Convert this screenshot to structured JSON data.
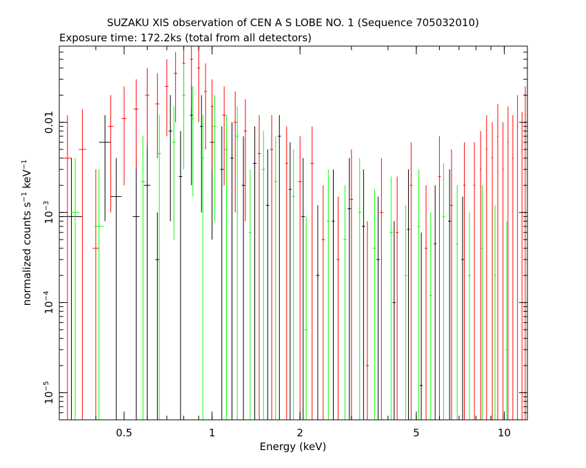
{
  "chart_data": {
    "type": "scatter",
    "title": "SUZAKU XIS observation of CEN A S LOBE NO. 1 (Sequence 705032010)",
    "subtitle": "Exposure time: 172.2ks (total from all detectors)",
    "xlabel": "Energy (keV)",
    "ylabel_main": "normalized counts s",
    "ylabel_sup1": "−1",
    "ylabel_mid": " keV",
    "ylabel_sup2": "−1",
    "x_scale": "log",
    "y_scale": "log",
    "xlim": [
      0.3,
      12.0
    ],
    "ylim": [
      5e-06,
      0.07
    ],
    "grid": false,
    "x_ticks": [
      {
        "value": 0.5,
        "label": "0.5"
      },
      {
        "value": 1,
        "label": "1"
      },
      {
        "value": 2,
        "label": "2"
      },
      {
        "value": 5,
        "label": "5"
      },
      {
        "value": 10,
        "label": "10"
      }
    ],
    "y_ticks": [
      {
        "value": 1e-05,
        "base": "10",
        "exp": "−5"
      },
      {
        "value": 0.0001,
        "base": "10",
        "exp": "−4"
      },
      {
        "value": 0.001,
        "base": "10",
        "exp": "−3"
      },
      {
        "value": 0.01,
        "base": "0.01",
        "exp": ""
      }
    ],
    "series": [
      {
        "color": "#000000",
        "points": [
          {
            "x": 0.33,
            "y": 0.0009,
            "xerr": 0.03,
            "ylo": 5e-06,
            "yhi": 0.004
          },
          {
            "x": 0.43,
            "y": 0.006,
            "xerr": 0.02,
            "ylo": 0.0008,
            "yhi": 0.012
          },
          {
            "x": 0.47,
            "y": 0.0015,
            "xerr": 0.02,
            "ylo": 5e-06,
            "yhi": 0.004
          },
          {
            "x": 0.55,
            "y": 0.0009,
            "xerr": 0.015,
            "ylo": 5e-06,
            "yhi": 0.004
          },
          {
            "x": 0.6,
            "y": 0.002,
            "xerr": 0.015,
            "ylo": 5e-06,
            "yhi": 0.006
          },
          {
            "x": 0.65,
            "y": 0.0003,
            "xerr": 0.01,
            "ylo": 5e-06,
            "yhi": 0.001
          },
          {
            "x": 0.72,
            "y": 0.008,
            "xerr": 0.01,
            "ylo": 0.0008,
            "yhi": 0.02
          },
          {
            "x": 0.78,
            "y": 0.0025,
            "xerr": 0.01,
            "ylo": 5e-06,
            "yhi": 0.008
          },
          {
            "x": 0.85,
            "y": 0.012,
            "xerr": 0.01,
            "ylo": 0.002,
            "yhi": 0.025
          },
          {
            "x": 0.92,
            "y": 0.009,
            "xerr": 0.01,
            "ylo": 0.001,
            "yhi": 0.02
          },
          {
            "x": 1.0,
            "y": 0.006,
            "xerr": 0.015,
            "ylo": 0.0005,
            "yhi": 0.015
          },
          {
            "x": 1.08,
            "y": 0.003,
            "xerr": 0.015,
            "ylo": 5e-06,
            "yhi": 0.009
          },
          {
            "x": 1.17,
            "y": 0.004,
            "xerr": 0.015,
            "ylo": 5e-06,
            "yhi": 0.01
          },
          {
            "x": 1.28,
            "y": 0.002,
            "xerr": 0.015,
            "ylo": 5e-06,
            "yhi": 0.007
          },
          {
            "x": 1.4,
            "y": 0.0035,
            "xerr": 0.02,
            "ylo": 5e-06,
            "yhi": 0.009
          },
          {
            "x": 1.55,
            "y": 0.0012,
            "xerr": 0.02,
            "ylo": 5e-06,
            "yhi": 0.005
          },
          {
            "x": 1.7,
            "y": 0.007,
            "xerr": 0.02,
            "ylo": 5e-06,
            "yhi": 0.012
          },
          {
            "x": 1.85,
            "y": 0.0018,
            "xerr": 0.02,
            "ylo": 5e-06,
            "yhi": 0.006
          },
          {
            "x": 2.05,
            "y": 0.0009,
            "xerr": 0.03,
            "ylo": 5e-06,
            "yhi": 0.004
          },
          {
            "x": 2.3,
            "y": 0.0002,
            "xerr": 0.03,
            "ylo": 5e-06,
            "yhi": 0.0012
          },
          {
            "x": 2.6,
            "y": 0.0008,
            "xerr": 0.03,
            "ylo": 5e-06,
            "yhi": 0.003
          },
          {
            "x": 2.95,
            "y": 0.0011,
            "xerr": 0.04,
            "ylo": 5e-06,
            "yhi": 0.004
          },
          {
            "x": 3.3,
            "y": 0.0007,
            "xerr": 0.04,
            "ylo": 5e-06,
            "yhi": 0.003
          },
          {
            "x": 3.7,
            "y": 0.0003,
            "xerr": 0.05,
            "ylo": 5e-06,
            "yhi": 0.0015
          },
          {
            "x": 4.2,
            "y": 0.0001,
            "xerr": 0.05,
            "ylo": 5e-06,
            "yhi": 0.0008
          },
          {
            "x": 4.7,
            "y": 0.00065,
            "xerr": 0.05,
            "ylo": 5e-06,
            "yhi": 0.003
          },
          {
            "x": 5.2,
            "y": 1.2e-05,
            "xerr": 0.06,
            "ylo": 5e-06,
            "yhi": 0.0006
          },
          {
            "x": 5.8,
            "y": 0.00045,
            "xerr": 0.06,
            "ylo": 5e-06,
            "yhi": 0.002
          },
          {
            "x": 6.5,
            "y": 0.0008,
            "xerr": 0.07,
            "ylo": 5e-06,
            "yhi": 0.003
          },
          {
            "x": 7.2,
            "y": 0.0003,
            "xerr": 0.07,
            "ylo": 5e-06,
            "yhi": 0.0015
          }
        ]
      },
      {
        "color": "#ff0000",
        "points": [
          {
            "x": 0.32,
            "y": 0.004,
            "xerr": 0.01,
            "ylo": 5e-06,
            "yhi": 0.012
          },
          {
            "x": 0.36,
            "y": 0.005,
            "xerr": 0.01,
            "ylo": 5e-06,
            "yhi": 0.014
          },
          {
            "x": 0.4,
            "y": 0.0004,
            "xerr": 0.01,
            "ylo": 5e-06,
            "yhi": 0.003
          },
          {
            "x": 0.45,
            "y": 0.009,
            "xerr": 0.01,
            "ylo": 0.001,
            "yhi": 0.02
          },
          {
            "x": 0.5,
            "y": 0.011,
            "xerr": 0.01,
            "ylo": 0.002,
            "yhi": 0.025
          },
          {
            "x": 0.55,
            "y": 0.014,
            "xerr": 0.01,
            "ylo": 0.003,
            "yhi": 0.03
          },
          {
            "x": 0.6,
            "y": 0.02,
            "xerr": 0.01,
            "ylo": 0.005,
            "yhi": 0.04
          },
          {
            "x": 0.65,
            "y": 0.016,
            "xerr": 0.01,
            "ylo": 0.004,
            "yhi": 0.035
          },
          {
            "x": 0.7,
            "y": 0.025,
            "xerr": 0.01,
            "ylo": 0.007,
            "yhi": 0.05
          },
          {
            "x": 0.75,
            "y": 0.035,
            "xerr": 0.01,
            "ylo": 0.01,
            "yhi": 0.06
          },
          {
            "x": 0.8,
            "y": 0.045,
            "xerr": 0.01,
            "ylo": 0.012,
            "yhi": 0.07
          },
          {
            "x": 0.85,
            "y": 0.05,
            "xerr": 0.01,
            "ylo": 0.015,
            "yhi": 0.07
          },
          {
            "x": 0.9,
            "y": 0.04,
            "xerr": 0.01,
            "ylo": 0.01,
            "yhi": 0.07
          },
          {
            "x": 0.95,
            "y": 0.022,
            "xerr": 0.01,
            "ylo": 0.005,
            "yhi": 0.045
          },
          {
            "x": 1.0,
            "y": 0.015,
            "xerr": 0.01,
            "ylo": 0.003,
            "yhi": 0.03
          },
          {
            "x": 1.1,
            "y": 0.012,
            "xerr": 0.015,
            "ylo": 0.002,
            "yhi": 0.025
          },
          {
            "x": 1.2,
            "y": 0.01,
            "xerr": 0.015,
            "ylo": 0.001,
            "yhi": 0.022
          },
          {
            "x": 1.3,
            "y": 0.008,
            "xerr": 0.015,
            "ylo": 0.0008,
            "yhi": 0.018
          },
          {
            "x": 1.45,
            "y": 0.0045,
            "xerr": 0.02,
            "ylo": 5e-06,
            "yhi": 0.012
          },
          {
            "x": 1.6,
            "y": 0.005,
            "xerr": 0.02,
            "ylo": 5e-06,
            "yhi": 0.012
          },
          {
            "x": 1.8,
            "y": 0.0035,
            "xerr": 0.02,
            "ylo": 5e-06,
            "yhi": 0.009
          },
          {
            "x": 2.0,
            "y": 0.0022,
            "xerr": 0.03,
            "ylo": 5e-06,
            "yhi": 0.007
          },
          {
            "x": 2.2,
            "y": 0.0035,
            "xerr": 0.03,
            "ylo": 5e-06,
            "yhi": 0.009
          },
          {
            "x": 2.4,
            "y": 0.0005,
            "xerr": 0.03,
            "ylo": 5e-06,
            "yhi": 0.002
          },
          {
            "x": 2.7,
            "y": 0.0003,
            "xerr": 0.03,
            "ylo": 5e-06,
            "yhi": 0.0015
          },
          {
            "x": 3.0,
            "y": 0.0014,
            "xerr": 0.04,
            "ylo": 5e-06,
            "yhi": 0.005
          },
          {
            "x": 3.4,
            "y": 2e-05,
            "xerr": 0.04,
            "ylo": 5e-06,
            "yhi": 0.0008
          },
          {
            "x": 3.8,
            "y": 0.001,
            "xerr": 0.05,
            "ylo": 5e-06,
            "yhi": 0.004
          },
          {
            "x": 4.3,
            "y": 0.0006,
            "xerr": 0.05,
            "ylo": 5e-06,
            "yhi": 0.0025
          },
          {
            "x": 4.8,
            "y": 0.002,
            "xerr": 0.05,
            "ylo": 5e-06,
            "yhi": 0.006
          },
          {
            "x": 5.4,
            "y": 0.0004,
            "xerr": 0.06,
            "ylo": 5e-06,
            "yhi": 0.002
          },
          {
            "x": 6.0,
            "y": 0.0025,
            "xerr": 0.06,
            "ylo": 5e-06,
            "yhi": 0.007
          },
          {
            "x": 6.6,
            "y": 0.0012,
            "xerr": 0.07,
            "ylo": 5e-06,
            "yhi": 0.005
          },
          {
            "x": 7.3,
            "y": 0.002,
            "xerr": 0.07,
            "ylo": 5e-06,
            "yhi": 0.006
          },
          {
            "x": 7.9,
            "y": 0.002,
            "xerr": 0.05,
            "ylo": 5e-06,
            "yhi": 0.006
          },
          {
            "x": 8.3,
            "y": 0.003,
            "xerr": 0.05,
            "ylo": 5e-06,
            "yhi": 0.008
          },
          {
            "x": 8.7,
            "y": 0.005,
            "xerr": 0.05,
            "ylo": 5e-06,
            "yhi": 0.012
          },
          {
            "x": 9.1,
            "y": 0.004,
            "xerr": 0.05,
            "ylo": 5e-06,
            "yhi": 0.01
          },
          {
            "x": 9.5,
            "y": 0.007,
            "xerr": 0.05,
            "ylo": 5e-06,
            "yhi": 0.016
          },
          {
            "x": 9.9,
            "y": 0.003,
            "xerr": 0.05,
            "ylo": 5e-06,
            "yhi": 0.01
          },
          {
            "x": 10.3,
            "y": 0.006,
            "xerr": 0.05,
            "ylo": 5e-06,
            "yhi": 0.015
          },
          {
            "x": 10.7,
            "y": 0.004,
            "xerr": 0.05,
            "ylo": 5e-06,
            "yhi": 0.012
          },
          {
            "x": 11.1,
            "y": 0.009,
            "xerr": 0.05,
            "ylo": 5e-06,
            "yhi": 0.02
          },
          {
            "x": 11.5,
            "y": 0.005,
            "xerr": 0.05,
            "ylo": 5e-06,
            "yhi": 0.013
          },
          {
            "x": 11.8,
            "y": 0.012,
            "xerr": 0.05,
            "ylo": 5e-06,
            "yhi": 0.025
          }
        ]
      },
      {
        "color": "#00ff00",
        "points": [
          {
            "x": 0.34,
            "y": 0.001,
            "xerr": 0.01,
            "ylo": 5e-06,
            "yhi": 0.004
          },
          {
            "x": 0.41,
            "y": 0.0007,
            "xerr": 0.015,
            "ylo": 5e-06,
            "yhi": 0.003
          },
          {
            "x": 0.58,
            "y": 0.0022,
            "xerr": 0.01,
            "ylo": 5e-06,
            "yhi": 0.007
          },
          {
            "x": 0.66,
            "y": 0.0045,
            "xerr": 0.01,
            "ylo": 5e-06,
            "yhi": 0.012
          },
          {
            "x": 0.74,
            "y": 0.006,
            "xerr": 0.01,
            "ylo": 0.0005,
            "yhi": 0.015
          },
          {
            "x": 0.8,
            "y": 0.02,
            "xerr": 0.01,
            "ylo": 0.003,
            "yhi": 0.045
          },
          {
            "x": 0.86,
            "y": 0.011,
            "xerr": 0.01,
            "ylo": 0.0015,
            "yhi": 0.025
          },
          {
            "x": 0.93,
            "y": 0.004,
            "xerr": 0.01,
            "ylo": 5e-06,
            "yhi": 0.012
          },
          {
            "x": 1.02,
            "y": 0.009,
            "xerr": 0.015,
            "ylo": 0.0008,
            "yhi": 0.02
          },
          {
            "x": 1.12,
            "y": 0.005,
            "xerr": 0.015,
            "ylo": 5e-06,
            "yhi": 0.012
          },
          {
            "x": 1.22,
            "y": 0.007,
            "xerr": 0.015,
            "ylo": 5e-06,
            "yhi": 0.015
          },
          {
            "x": 1.35,
            "y": 0.0006,
            "xerr": 0.015,
            "ylo": 5e-06,
            "yhi": 0.003
          },
          {
            "x": 1.5,
            "y": 0.003,
            "xerr": 0.02,
            "ylo": 5e-06,
            "yhi": 0.008
          },
          {
            "x": 1.65,
            "y": 0.0022,
            "xerr": 0.02,
            "ylo": 5e-06,
            "yhi": 0.007
          },
          {
            "x": 1.9,
            "y": 0.0015,
            "xerr": 0.02,
            "ylo": 5e-06,
            "yhi": 0.005
          },
          {
            "x": 2.1,
            "y": 5e-05,
            "xerr": 0.03,
            "ylo": 5e-06,
            "yhi": 0.0009
          },
          {
            "x": 2.5,
            "y": 0.0008,
            "xerr": 0.03,
            "ylo": 5e-06,
            "yhi": 0.003
          },
          {
            "x": 2.85,
            "y": 0.0005,
            "xerr": 0.04,
            "ylo": 5e-06,
            "yhi": 0.002
          },
          {
            "x": 3.2,
            "y": 0.001,
            "xerr": 0.04,
            "ylo": 5e-06,
            "yhi": 0.004
          },
          {
            "x": 3.6,
            "y": 0.0004,
            "xerr": 0.05,
            "ylo": 5e-06,
            "yhi": 0.0018
          },
          {
            "x": 4.1,
            "y": 0.0006,
            "xerr": 0.05,
            "ylo": 5e-06,
            "yhi": 0.0025
          },
          {
            "x": 4.6,
            "y": 0.0002,
            "xerr": 0.05,
            "ylo": 5e-06,
            "yhi": 0.0012
          },
          {
            "x": 5.1,
            "y": 0.0007,
            "xerr": 0.06,
            "ylo": 5e-06,
            "yhi": 0.003
          },
          {
            "x": 5.6,
            "y": 0.00012,
            "xerr": 0.06,
            "ylo": 5e-06,
            "yhi": 0.001
          },
          {
            "x": 6.2,
            "y": 0.0009,
            "xerr": 0.07,
            "ylo": 5e-06,
            "yhi": 0.0035
          },
          {
            "x": 6.9,
            "y": 0.00045,
            "xerr": 0.07,
            "ylo": 5e-06,
            "yhi": 0.002
          },
          {
            "x": 7.6,
            "y": 0.0002,
            "xerr": 0.08,
            "ylo": 5e-06,
            "yhi": 0.001
          },
          {
            "x": 8.4,
            "y": 0.0004,
            "xerr": 0.08,
            "ylo": 5e-06,
            "yhi": 0.002
          },
          {
            "x": 9.3,
            "y": 0.0002,
            "xerr": 0.08,
            "ylo": 5e-06,
            "yhi": 0.0012
          },
          {
            "x": 10.2,
            "y": 3e-05,
            "xerr": 0.09,
            "ylo": 5e-06,
            "yhi": 0.0008
          }
        ]
      }
    ]
  }
}
